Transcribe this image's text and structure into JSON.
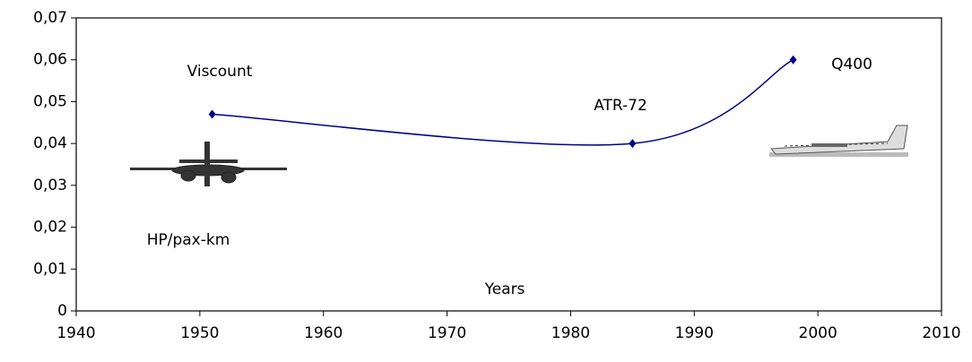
{
  "chart_data": {
    "type": "line",
    "x": [
      1951,
      1985,
      1998
    ],
    "series": [
      {
        "name": null,
        "color": "#00008b",
        "values": [
          0.047,
          0.04,
          0.06
        ]
      }
    ],
    "annotations": [
      "Viscount",
      "ATR-72",
      "Q400",
      "HP/pax-km",
      "Years"
    ],
    "xlim": [
      1940,
      2010
    ],
    "xticks": [
      1940,
      1950,
      1960,
      1970,
      1980,
      1990,
      2000,
      2010
    ],
    "ylim": [
      0,
      0.07
    ],
    "yticks": [
      0,
      {
        "value": 0.01,
        "label": "0,01"
      },
      {
        "value": 0.02,
        "label": "0,02"
      },
      {
        "value": 0.03,
        "label": "0,03"
      },
      {
        "value": 0.04,
        "label": "0,04"
      },
      {
        "value": 0.05,
        "label": "0,05"
      },
      {
        "value": 0.06,
        "label": "0,06"
      },
      {
        "value": 0.07,
        "label": "0,07"
      }
    ],
    "smooth": true
  }
}
